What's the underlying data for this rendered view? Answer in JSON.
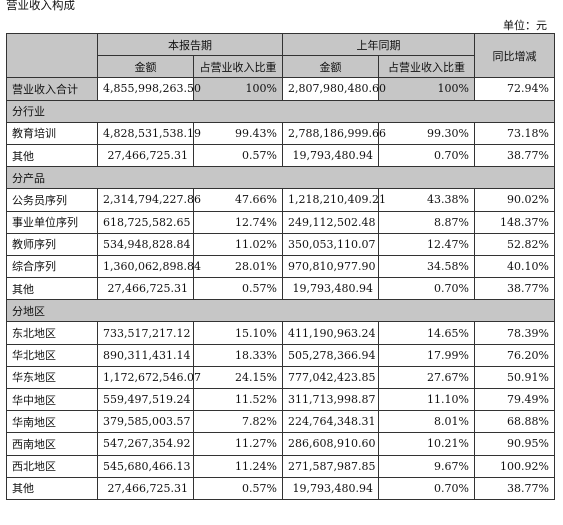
{
  "title": "营业收入构成",
  "unit": "单位：元",
  "headers": {
    "current_period": "本报告期",
    "prior_period": "上年同期",
    "yoy": "同比增减",
    "amount": "金额",
    "share": "占营业收入比重"
  },
  "total": {
    "label": "营业收入合计",
    "cur_amount": "4,855,998,263.50",
    "cur_share": "100%",
    "prior_amount": "2,807,980,480.60",
    "prior_share": "100%",
    "yoy": "72.94%"
  },
  "sections": [
    {
      "label": "分行业",
      "rows": [
        {
          "label": "教育培训",
          "cur_amount": "4,828,531,538.19",
          "cur_share": "99.43%",
          "prior_amount": "2,788,186,999.66",
          "prior_share": "99.30%",
          "yoy": "73.18%"
        },
        {
          "label": "其他",
          "cur_amount": "27,466,725.31",
          "cur_share": "0.57%",
          "prior_amount": "19,793,480.94",
          "prior_share": "0.70%",
          "yoy": "38.77%"
        }
      ]
    },
    {
      "label": "分产品",
      "rows": [
        {
          "label": "公务员序列",
          "cur_amount": "2,314,794,227.86",
          "cur_share": "47.66%",
          "prior_amount": "1,218,210,409.21",
          "prior_share": "43.38%",
          "yoy": "90.02%"
        },
        {
          "label": "事业单位序列",
          "cur_amount": "618,725,582.65",
          "cur_share": "12.74%",
          "prior_amount": "249,112,502.48",
          "prior_share": "8.87%",
          "yoy": "148.37%"
        },
        {
          "label": "教师序列",
          "cur_amount": "534,948,828.84",
          "cur_share": "11.02%",
          "prior_amount": "350,053,110.07",
          "prior_share": "12.47%",
          "yoy": "52.82%"
        },
        {
          "label": "综合序列",
          "cur_amount": "1,360,062,898.84",
          "cur_share": "28.01%",
          "prior_amount": "970,810,977.90",
          "prior_share": "34.58%",
          "yoy": "40.10%"
        },
        {
          "label": "其他",
          "cur_amount": "27,466,725.31",
          "cur_share": "0.57%",
          "prior_amount": "19,793,480.94",
          "prior_share": "0.70%",
          "yoy": "38.77%"
        }
      ]
    },
    {
      "label": "分地区",
      "rows": [
        {
          "label": "东北地区",
          "cur_amount": "733,517,217.12",
          "cur_share": "15.10%",
          "prior_amount": "411,190,963.24",
          "prior_share": "14.65%",
          "yoy": "78.39%"
        },
        {
          "label": "华北地区",
          "cur_amount": "890,311,431.14",
          "cur_share": "18.33%",
          "prior_amount": "505,278,366.94",
          "prior_share": "17.99%",
          "yoy": "76.20%"
        },
        {
          "label": "华东地区",
          "cur_amount": "1,172,672,546.07",
          "cur_share": "24.15%",
          "prior_amount": "777,042,423.85",
          "prior_share": "27.67%",
          "yoy": "50.91%"
        },
        {
          "label": "华中地区",
          "cur_amount": "559,497,519.24",
          "cur_share": "11.52%",
          "prior_amount": "311,713,998.87",
          "prior_share": "11.10%",
          "yoy": "79.49%"
        },
        {
          "label": "华南地区",
          "cur_amount": "379,585,003.57",
          "cur_share": "7.82%",
          "prior_amount": "224,764,348.31",
          "prior_share": "8.01%",
          "yoy": "68.88%"
        },
        {
          "label": "西南地区",
          "cur_amount": "547,267,354.92",
          "cur_share": "11.27%",
          "prior_amount": "286,608,910.60",
          "prior_share": "10.21%",
          "yoy": "90.95%"
        },
        {
          "label": "西北地区",
          "cur_amount": "545,680,466.13",
          "cur_share": "11.24%",
          "prior_amount": "271,587,987.85",
          "prior_share": "9.67%",
          "yoy": "100.92%"
        },
        {
          "label": "其他",
          "cur_amount": "27,466,725.31",
          "cur_share": "0.57%",
          "prior_amount": "19,793,480.94",
          "prior_share": "0.70%",
          "yoy": "38.77%"
        }
      ]
    }
  ]
}
